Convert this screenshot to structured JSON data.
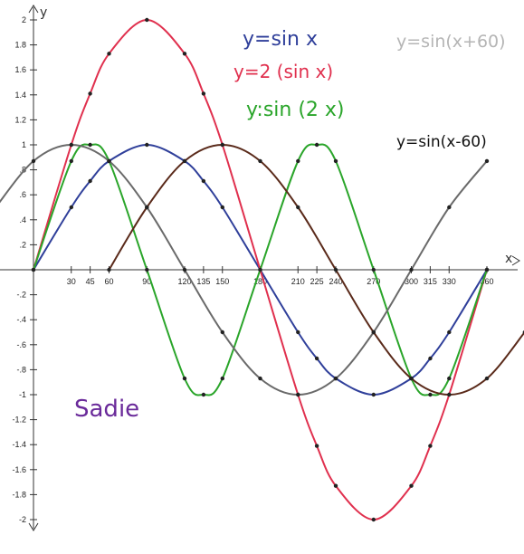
{
  "chart_data": {
    "type": "line",
    "ylabel": "y",
    "xlabel": "x",
    "xlim": [
      0,
      360
    ],
    "ylim": [
      -2,
      2
    ],
    "grid": false,
    "x_ticks": [
      30,
      45,
      60,
      90,
      120,
      135,
      150,
      180,
      210,
      225,
      240,
      270,
      300,
      315,
      330,
      360
    ],
    "x_tick_labels": [
      "30",
      "45",
      "60",
      "90",
      "120",
      "135",
      "150",
      "180",
      "210",
      "225",
      "240",
      "270",
      "300",
      "315",
      "330",
      "360"
    ],
    "y_ticks": [
      2,
      1.8,
      1.6,
      1.4,
      1.2,
      1,
      0.8,
      0.6,
      0.4,
      0.2,
      -0.2,
      -0.4,
      -0.6,
      -0.8,
      -1,
      -1.2,
      -1.4,
      -1.6,
      -1.8,
      -2
    ],
    "y_tick_labels": [
      "2",
      "1.8",
      "1.6",
      "1.4",
      "1.2",
      "1",
      ".8",
      ".6",
      ".4",
      ".2",
      "-.2",
      "-.4",
      "-.6",
      "-.8",
      "-1",
      "-1.2",
      "-1.4",
      "-1.6",
      "-1.8",
      "-2"
    ],
    "series": [
      {
        "name": "y=sin x",
        "color": "#2f3f9a",
        "x": [
          0,
          30,
          45,
          60,
          90,
          120,
          135,
          150,
          180,
          210,
          225,
          240,
          270,
          300,
          315,
          330,
          360
        ],
        "values": [
          0,
          0.5,
          0.71,
          0.87,
          1,
          0.87,
          0.71,
          0.5,
          0,
          -0.5,
          -0.71,
          -0.87,
          -1,
          -0.87,
          -0.71,
          -0.5,
          0
        ]
      },
      {
        "name": "y=2 (sin x)",
        "color": "#e0304e",
        "x": [
          0,
          30,
          45,
          60,
          90,
          120,
          135,
          150,
          180,
          210,
          225,
          240,
          270,
          300,
          315,
          330,
          360
        ],
        "values": [
          0,
          1,
          1.41,
          1.73,
          2,
          1.73,
          1.41,
          1,
          0,
          -1,
          -1.41,
          -1.73,
          -2,
          -1.73,
          -1.41,
          -1,
          0
        ]
      },
      {
        "name": "y:sin (2 x)",
        "color": "#2aa52a",
        "x": [
          0,
          30,
          45,
          60,
          90,
          120,
          135,
          150,
          180,
          210,
          225,
          240,
          270,
          300,
          315,
          330,
          360
        ],
        "values": [
          0,
          0.87,
          1,
          0.87,
          0,
          -0.87,
          -1,
          -0.87,
          0,
          0.87,
          1,
          0.87,
          0,
          -0.87,
          -1,
          -0.87,
          0
        ]
      },
      {
        "name": "y=sin(x-60)",
        "color": "#5a2a1a",
        "x": [
          60,
          90,
          120,
          150,
          180,
          210,
          240,
          270,
          300,
          330,
          360,
          390
        ],
        "values": [
          0,
          0.5,
          0.87,
          1,
          0.87,
          0.5,
          0,
          -0.5,
          -0.87,
          -1,
          -0.87,
          -0.5
        ]
      },
      {
        "name": "y=sin(x+60)",
        "color": "#6a6a6a",
        "x": [
          -30,
          0,
          30,
          60,
          90,
          120,
          150,
          180,
          210,
          240,
          270,
          300,
          330,
          360
        ],
        "values": [
          0.5,
          0.87,
          1,
          0.87,
          0.5,
          0,
          -0.5,
          -0.87,
          -1,
          -0.87,
          -0.5,
          0,
          0.5,
          0.87
        ]
      }
    ],
    "annotations": [
      "y=sin x",
      "y=2 (sin x)",
      "y:sin (2 x)",
      "y=sin(x-60)",
      "y=sin(x+60)",
      "Sadie"
    ]
  }
}
